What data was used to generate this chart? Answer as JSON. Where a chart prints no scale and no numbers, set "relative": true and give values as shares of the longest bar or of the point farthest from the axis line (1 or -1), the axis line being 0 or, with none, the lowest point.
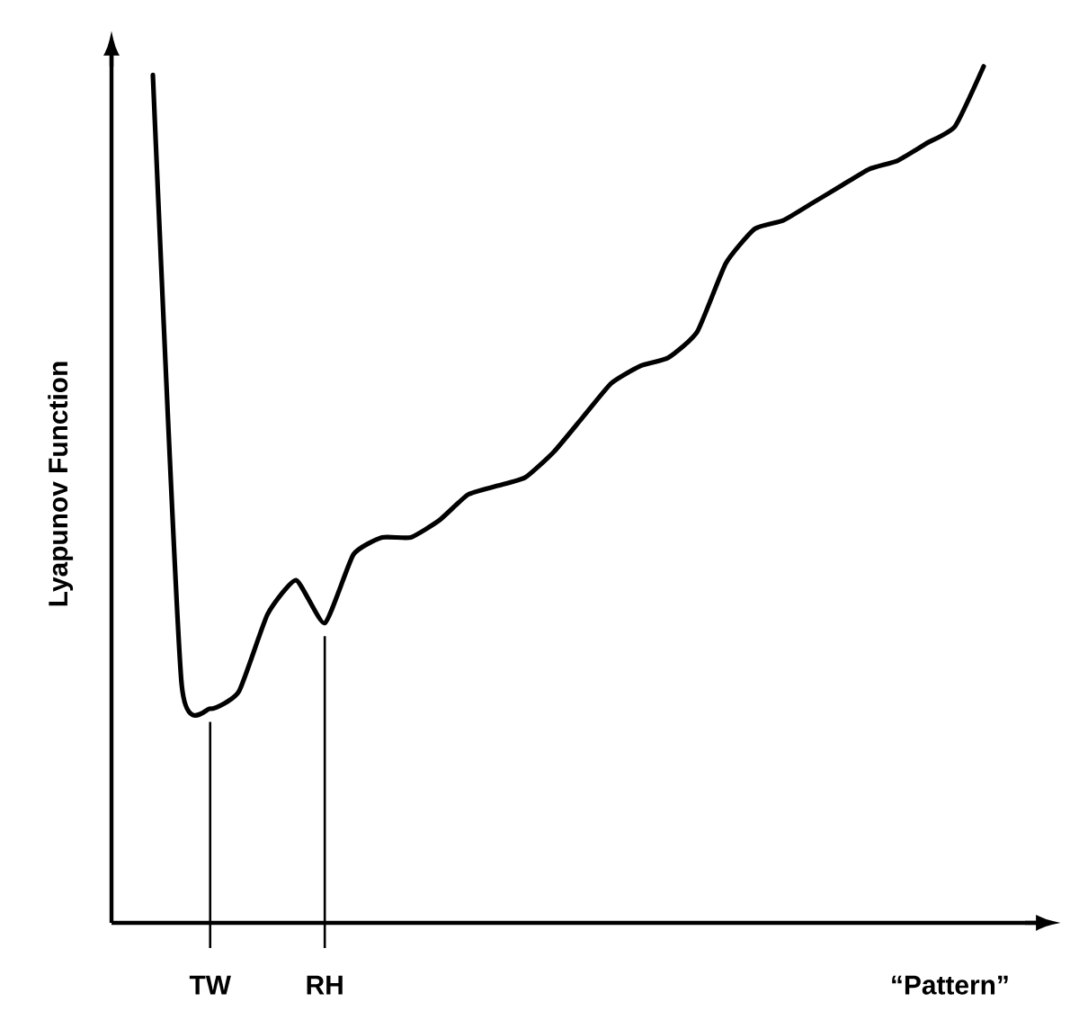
{
  "chart_data": {
    "type": "line",
    "relative": true,
    "xlabel": "“Pattern”",
    "ylabel": "Lyapunov Function",
    "categories": [
      null,
      null,
      "TW",
      null,
      null,
      null,
      "RH",
      null,
      null,
      null,
      null,
      null,
      null,
      null,
      null,
      null,
      null,
      null,
      null,
      null,
      null,
      null,
      null,
      null,
      null,
      null,
      null,
      null,
      null,
      null
    ],
    "series": [
      {
        "color": "#000000",
        "values": [
          0.99,
          0.28,
          0.25,
          0.27,
          0.36,
          0.4,
          0.35,
          0.43,
          0.45,
          0.45,
          0.47,
          0.5,
          0.51,
          0.52,
          0.55,
          0.59,
          0.63,
          0.65,
          0.66,
          0.69,
          0.77,
          0.81,
          0.82,
          0.84,
          0.86,
          0.88,
          0.89,
          0.91,
          0.93,
          1
        ]
      }
    ],
    "ref_lines": [
      {
        "axis": "x",
        "value": "TW",
        "color": "#000000"
      },
      {
        "axis": "x",
        "value": "RH",
        "color": "#000000"
      }
    ],
    "grid": false,
    "marker": "none",
    "line_style": "solid"
  }
}
